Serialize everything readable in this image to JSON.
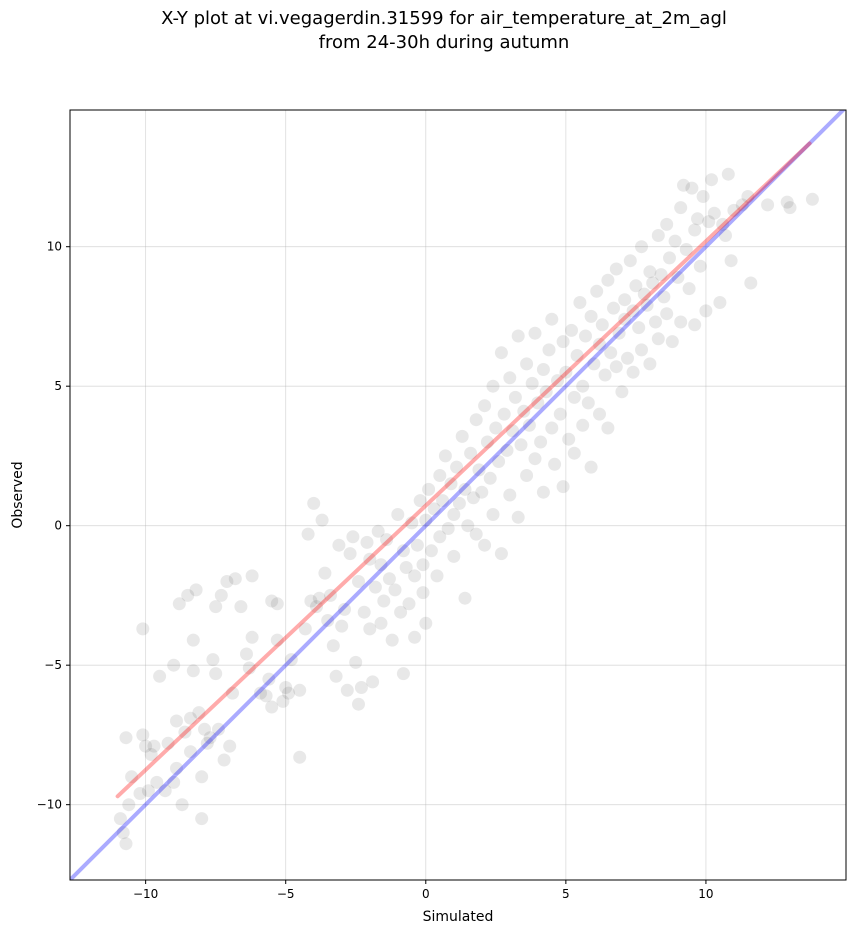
{
  "chart_data": {
    "type": "scatter",
    "title_line1": "X-Y plot at vi.vegagerdin.31599 for air_temperature_at_2m_agl",
    "title_line2": "from 24-30h during autumn",
    "xlabel": "Simulated",
    "ylabel": "Observed",
    "xlim": [
      -12.7,
      15.0
    ],
    "ylim": [
      -12.7,
      14.9
    ],
    "xticks": [
      -10,
      -5,
      0,
      5,
      10
    ],
    "yticks": [
      -10,
      -5,
      0,
      5,
      10
    ],
    "xtick_labels": [
      "−10",
      "−5",
      "0",
      "5",
      "10"
    ],
    "ytick_labels": [
      "−10",
      "−5",
      "0",
      "5",
      "10"
    ],
    "grid": true,
    "colors": {
      "points": "#000000",
      "fit_line": "#ff0000",
      "identity_line": "#0000ff"
    },
    "fit_line": {
      "x": [
        -11.0,
        13.7
      ],
      "y": [
        -9.7,
        13.7
      ]
    },
    "identity_line": {
      "x": [
        -12.7,
        15.0
      ],
      "y": [
        -12.7,
        15.0
      ]
    },
    "points": [
      [
        -10.9,
        -10.5
      ],
      [
        -10.8,
        -11.0
      ],
      [
        -10.7,
        -11.4
      ],
      [
        -10.7,
        -7.6
      ],
      [
        -10.6,
        -10.0
      ],
      [
        -10.5,
        -9.0
      ],
      [
        -10.2,
        -9.6
      ],
      [
        -10.1,
        -3.7
      ],
      [
        -10.1,
        -7.5
      ],
      [
        -10.0,
        -7.9
      ],
      [
        -9.9,
        -9.5
      ],
      [
        -9.8,
        -8.2
      ],
      [
        -9.7,
        -7.9
      ],
      [
        -9.6,
        -9.2
      ],
      [
        -9.5,
        -5.4
      ],
      [
        -9.3,
        -9.5
      ],
      [
        -9.2,
        -7.8
      ],
      [
        -9.0,
        -5.0
      ],
      [
        -9.0,
        -9.2
      ],
      [
        -8.9,
        -7.0
      ],
      [
        -8.9,
        -8.7
      ],
      [
        -8.8,
        -2.8
      ],
      [
        -8.7,
        -10.0
      ],
      [
        -8.6,
        -7.4
      ],
      [
        -8.5,
        -2.5
      ],
      [
        -8.4,
        -6.9
      ],
      [
        -8.4,
        -8.1
      ],
      [
        -8.3,
        -5.2
      ],
      [
        -8.3,
        -4.1
      ],
      [
        -8.2,
        -2.3
      ],
      [
        -8.1,
        -6.7
      ],
      [
        -8.0,
        -10.5
      ],
      [
        -8.0,
        -9.0
      ],
      [
        -7.9,
        -7.3
      ],
      [
        -7.8,
        -7.8
      ],
      [
        -7.7,
        -7.6
      ],
      [
        -7.6,
        -4.8
      ],
      [
        -7.5,
        -2.9
      ],
      [
        -7.5,
        -5.3
      ],
      [
        -7.4,
        -7.3
      ],
      [
        -7.3,
        -2.5
      ],
      [
        -7.2,
        -8.4
      ],
      [
        -7.1,
        -2.0
      ],
      [
        -7.0,
        -7.9
      ],
      [
        -6.9,
        -6.0
      ],
      [
        -6.8,
        -1.9
      ],
      [
        -6.6,
        -2.9
      ],
      [
        -6.4,
        -4.6
      ],
      [
        -6.3,
        -5.1
      ],
      [
        -6.2,
        -1.8
      ],
      [
        -6.2,
        -4.0
      ],
      [
        -5.9,
        -6.0
      ],
      [
        -5.7,
        -6.1
      ],
      [
        -5.6,
        -5.5
      ],
      [
        -5.5,
        -6.5
      ],
      [
        -5.5,
        -2.7
      ],
      [
        -5.3,
        -2.8
      ],
      [
        -5.3,
        -4.1
      ],
      [
        -5.1,
        -6.3
      ],
      [
        -5.0,
        -5.8
      ],
      [
        -4.9,
        -6.0
      ],
      [
        -4.8,
        -4.8
      ],
      [
        -4.5,
        -5.9
      ],
      [
        -4.5,
        -8.3
      ],
      [
        -4.3,
        -3.7
      ],
      [
        -4.2,
        -0.3
      ],
      [
        -4.1,
        -2.7
      ],
      [
        -4.0,
        0.8
      ],
      [
        -3.9,
        -2.9
      ],
      [
        -3.8,
        -2.6
      ],
      [
        -3.7,
        0.2
      ],
      [
        -3.6,
        -1.7
      ],
      [
        -3.5,
        -3.4
      ],
      [
        -3.4,
        -2.5
      ],
      [
        -3.3,
        -4.3
      ],
      [
        -3.2,
        -5.4
      ],
      [
        -3.1,
        -0.7
      ],
      [
        -3.0,
        -3.6
      ],
      [
        -2.9,
        -3.0
      ],
      [
        -2.8,
        -5.9
      ],
      [
        -2.7,
        -1.0
      ],
      [
        -2.6,
        -0.4
      ],
      [
        -2.5,
        -4.9
      ],
      [
        -2.4,
        -6.4
      ],
      [
        -2.4,
        -2.0
      ],
      [
        -2.3,
        -5.8
      ],
      [
        -2.2,
        -3.1
      ],
      [
        -2.1,
        -0.6
      ],
      [
        -2.0,
        -3.7
      ],
      [
        -2.0,
        -1.2
      ],
      [
        -1.9,
        -5.6
      ],
      [
        -1.8,
        -2.2
      ],
      [
        -1.7,
        -0.2
      ],
      [
        -1.6,
        -1.4
      ],
      [
        -1.6,
        -3.5
      ],
      [
        -1.5,
        -2.7
      ],
      [
        -1.4,
        -0.5
      ],
      [
        -1.3,
        -1.9
      ],
      [
        -1.2,
        -4.1
      ],
      [
        -1.1,
        -2.3
      ],
      [
        -1.0,
        0.4
      ],
      [
        -0.9,
        -3.1
      ],
      [
        -0.8,
        -0.9
      ],
      [
        -0.8,
        -5.3
      ],
      [
        -0.7,
        -1.5
      ],
      [
        -0.6,
        -2.8
      ],
      [
        -0.5,
        0.1
      ],
      [
        -0.4,
        -1.8
      ],
      [
        -0.4,
        -4.0
      ],
      [
        -0.3,
        -0.7
      ],
      [
        -0.2,
        0.9
      ],
      [
        -0.1,
        -1.4
      ],
      [
        -0.1,
        -2.4
      ],
      [
        0.0,
        0.2
      ],
      [
        0.0,
        -3.5
      ],
      [
        0.1,
        1.3
      ],
      [
        0.2,
        -0.9
      ],
      [
        0.3,
        0.6
      ],
      [
        0.4,
        -1.8
      ],
      [
        0.5,
        1.8
      ],
      [
        0.5,
        -0.4
      ],
      [
        0.6,
        0.9
      ],
      [
        0.7,
        2.5
      ],
      [
        0.8,
        -0.1
      ],
      [
        0.9,
        1.5
      ],
      [
        1.0,
        0.4
      ],
      [
        1.0,
        -1.1
      ],
      [
        1.1,
        2.1
      ],
      [
        1.2,
        0.8
      ],
      [
        1.3,
        3.2
      ],
      [
        1.4,
        -2.6
      ],
      [
        1.4,
        1.3
      ],
      [
        1.5,
        0.0
      ],
      [
        1.6,
        2.6
      ],
      [
        1.7,
        1.0
      ],
      [
        1.8,
        3.8
      ],
      [
        1.8,
        -0.3
      ],
      [
        1.9,
        2.0
      ],
      [
        2.0,
        1.2
      ],
      [
        2.1,
        4.3
      ],
      [
        2.1,
        -0.7
      ],
      [
        2.2,
        3.0
      ],
      [
        2.3,
        1.7
      ],
      [
        2.4,
        5.0
      ],
      [
        2.4,
        0.4
      ],
      [
        2.5,
        3.5
      ],
      [
        2.6,
        2.3
      ],
      [
        2.7,
        6.2
      ],
      [
        2.7,
        -1.0
      ],
      [
        2.8,
        4.0
      ],
      [
        2.9,
        2.7
      ],
      [
        3.0,
        5.3
      ],
      [
        3.0,
        1.1
      ],
      [
        3.1,
        3.4
      ],
      [
        3.2,
        4.6
      ],
      [
        3.3,
        6.8
      ],
      [
        3.3,
        0.3
      ],
      [
        3.4,
        2.9
      ],
      [
        3.5,
        4.1
      ],
      [
        3.6,
        5.8
      ],
      [
        3.6,
        1.8
      ],
      [
        3.7,
        3.6
      ],
      [
        3.8,
        5.1
      ],
      [
        3.9,
        6.9
      ],
      [
        3.9,
        2.4
      ],
      [
        4.0,
        4.4
      ],
      [
        4.1,
        3.0
      ],
      [
        4.2,
        5.6
      ],
      [
        4.2,
        1.2
      ],
      [
        4.3,
        4.8
      ],
      [
        4.4,
        6.3
      ],
      [
        4.5,
        3.5
      ],
      [
        4.5,
        7.4
      ],
      [
        4.6,
        2.2
      ],
      [
        4.7,
        5.2
      ],
      [
        4.8,
        4.0
      ],
      [
        4.9,
        6.6
      ],
      [
        4.9,
        1.4
      ],
      [
        5.0,
        5.5
      ],
      [
        5.1,
        3.1
      ],
      [
        5.2,
        7.0
      ],
      [
        5.3,
        4.6
      ],
      [
        5.3,
        2.6
      ],
      [
        5.4,
        6.1
      ],
      [
        5.5,
        8.0
      ],
      [
        5.6,
        5.0
      ],
      [
        5.6,
        3.6
      ],
      [
        5.7,
        6.8
      ],
      [
        5.8,
        4.4
      ],
      [
        5.9,
        7.5
      ],
      [
        5.9,
        2.1
      ],
      [
        6.0,
        5.8
      ],
      [
        6.1,
        8.4
      ],
      [
        6.2,
        6.5
      ],
      [
        6.2,
        4.0
      ],
      [
        6.3,
        7.2
      ],
      [
        6.4,
        5.4
      ],
      [
        6.5,
        8.8
      ],
      [
        6.5,
        3.5
      ],
      [
        6.6,
        6.2
      ],
      [
        6.7,
        7.8
      ],
      [
        6.8,
        5.7
      ],
      [
        6.8,
        9.2
      ],
      [
        6.9,
        6.9
      ],
      [
        7.0,
        4.8
      ],
      [
        7.1,
        8.1
      ],
      [
        7.1,
        7.4
      ],
      [
        7.2,
        6.0
      ],
      [
        7.3,
        9.5
      ],
      [
        7.4,
        7.7
      ],
      [
        7.4,
        5.5
      ],
      [
        7.5,
        8.6
      ],
      [
        7.6,
        7.1
      ],
      [
        7.7,
        10.0
      ],
      [
        7.7,
        6.3
      ],
      [
        7.8,
        8.3
      ],
      [
        7.9,
        7.9
      ],
      [
        8.0,
        9.1
      ],
      [
        8.0,
        5.8
      ],
      [
        8.1,
        8.7
      ],
      [
        8.2,
        7.3
      ],
      [
        8.3,
        10.4
      ],
      [
        8.3,
        6.7
      ],
      [
        8.4,
        9.0
      ],
      [
        8.5,
        8.2
      ],
      [
        8.6,
        10.8
      ],
      [
        8.6,
        7.6
      ],
      [
        8.7,
        9.6
      ],
      [
        8.8,
        6.6
      ],
      [
        8.9,
        10.2
      ],
      [
        9.0,
        8.9
      ],
      [
        9.1,
        11.4
      ],
      [
        9.1,
        7.3
      ],
      [
        9.2,
        12.2
      ],
      [
        9.3,
        9.9
      ],
      [
        9.4,
        8.5
      ],
      [
        9.5,
        12.1
      ],
      [
        9.6,
        10.6
      ],
      [
        9.6,
        7.2
      ],
      [
        9.7,
        11.0
      ],
      [
        9.8,
        9.3
      ],
      [
        9.9,
        11.8
      ],
      [
        10.0,
        7.7
      ],
      [
        10.1,
        10.9
      ],
      [
        10.2,
        12.4
      ],
      [
        10.3,
        11.2
      ],
      [
        10.5,
        8.0
      ],
      [
        10.6,
        10.8
      ],
      [
        10.7,
        10.4
      ],
      [
        10.8,
        12.6
      ],
      [
        10.9,
        9.5
      ],
      [
        11.0,
        11.3
      ],
      [
        11.3,
        11.5
      ],
      [
        11.5,
        11.8
      ],
      [
        11.6,
        8.7
      ],
      [
        12.2,
        11.5
      ],
      [
        12.9,
        11.6
      ],
      [
        13.0,
        11.4
      ],
      [
        13.8,
        11.7
      ]
    ]
  }
}
